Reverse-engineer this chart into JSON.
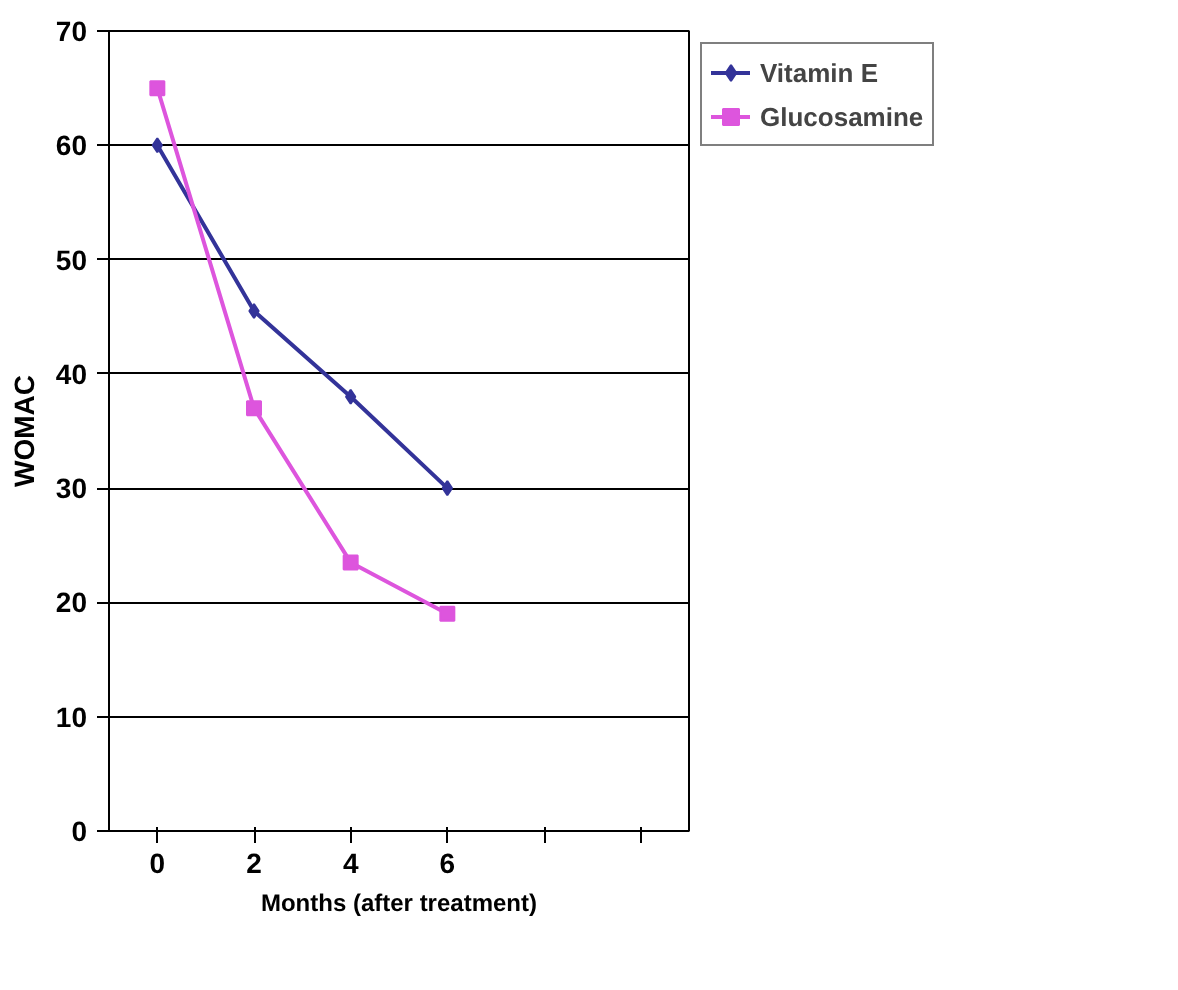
{
  "chart_data": {
    "type": "line",
    "xlabel": "Months (after treatment)",
    "ylabel": "WOMAC",
    "categories": [
      "0",
      "2",
      "4",
      "6",
      null,
      null
    ],
    "ylim": [
      0,
      70
    ],
    "yticks": [
      0,
      10,
      20,
      30,
      40,
      50,
      60,
      70
    ],
    "grid": "y",
    "legend": "right",
    "series": [
      {
        "name": "Vitamin E",
        "color": "#333399",
        "marker": "diamond",
        "values": [
          60,
          45.5,
          38,
          30,
          null,
          null
        ]
      },
      {
        "name": "Glucosamine",
        "color": "#dd55dd",
        "marker": "square",
        "values": [
          65,
          37,
          23.5,
          19,
          null,
          null
        ]
      }
    ]
  }
}
